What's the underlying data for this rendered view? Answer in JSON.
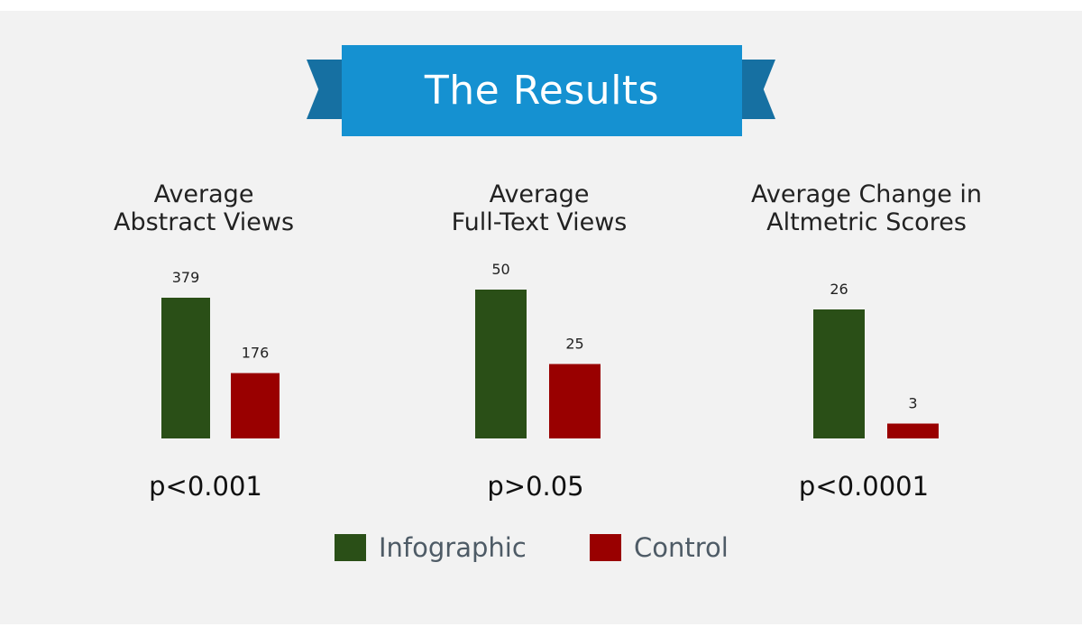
{
  "banner": {
    "title": "The Results"
  },
  "colors": {
    "infographic": "#2a4f17",
    "control": "#990000",
    "banner": "#1591d1",
    "ribbon": "#1670a2"
  },
  "legend": [
    {
      "label": "Infographic",
      "color": "#2a4f17"
    },
    {
      "label": "Control",
      "color": "#990000"
    }
  ],
  "chart_data": [
    {
      "type": "bar",
      "title": "Average\nAbstract Views",
      "categories": [
        "Infographic",
        "Control"
      ],
      "values": [
        379,
        176
      ],
      "data_labels": [
        "379",
        "176"
      ],
      "ylim": [
        0,
        379
      ],
      "p_value": "p<0.001"
    },
    {
      "type": "bar",
      "title": "Average\nFull-Text Views",
      "categories": [
        "Infographic",
        "Control"
      ],
      "values": [
        50,
        25
      ],
      "data_labels": [
        "50",
        "25"
      ],
      "ylim": [
        0,
        50
      ],
      "p_value": "p>0.05"
    },
    {
      "type": "bar",
      "title": "Average Change in\nAltmetric Scores",
      "categories": [
        "Infographic",
        "Control"
      ],
      "values": [
        26,
        3
      ],
      "data_labels": [
        "26",
        "3"
      ],
      "ylim": [
        0,
        26
      ],
      "p_value": "p<0.0001"
    }
  ]
}
